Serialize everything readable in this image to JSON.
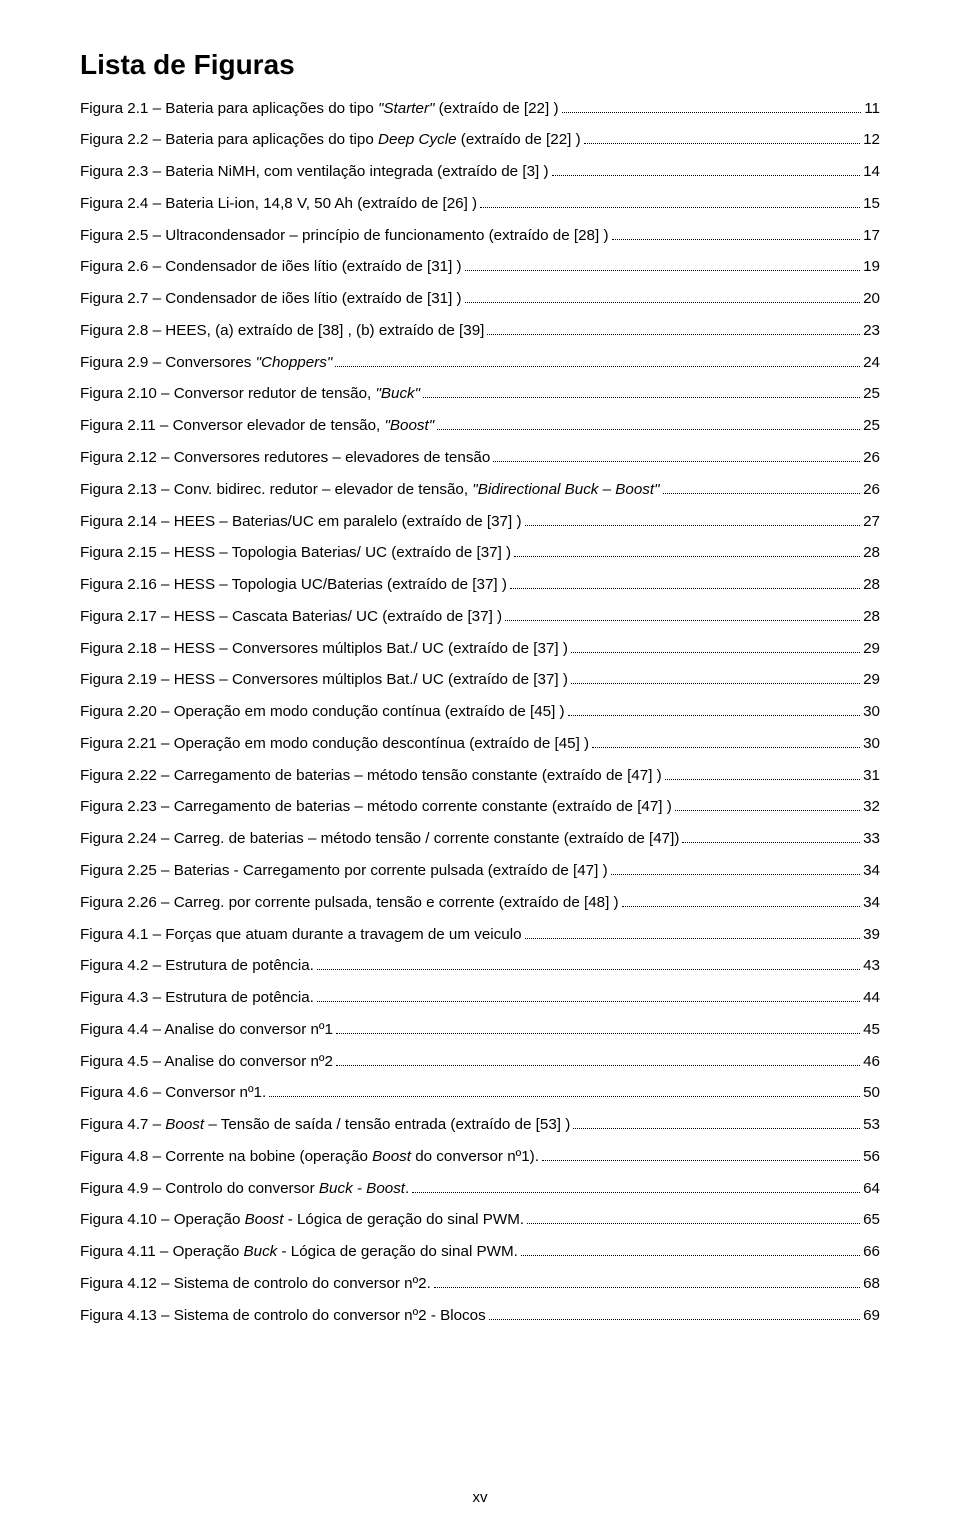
{
  "title": "Lista de Figuras",
  "footer": "xv",
  "entries": [
    {
      "pre": "Figura 2.1 – Bateria para aplicações do tipo ",
      "it": "\"Starter\"",
      "post": " (extraído de [22] )",
      "page": "11"
    },
    {
      "pre": "Figura 2.2 – Bateria para aplicações do tipo ",
      "it": "Deep Cycle",
      "post": " (extraído de [22] )",
      "page": "12"
    },
    {
      "pre": "Figura 2.3 – Bateria NiMH, com ventilação integrada (extraído de [3] )",
      "it": "",
      "post": "",
      "page": "14"
    },
    {
      "pre": "Figura 2.4 – Bateria Li-ion, 14,8 V, 50 Ah (extraído de [26] )",
      "it": "",
      "post": "",
      "page": "15"
    },
    {
      "pre": "Figura 2.5 – Ultracondensador – princípio de funcionamento (extraído de [28] )",
      "it": "",
      "post": "",
      "page": "17"
    },
    {
      "pre": "Figura 2.6 – Condensador de iões lítio (extraído de [31] )",
      "it": "",
      "post": "",
      "page": "19"
    },
    {
      "pre": "Figura 2.7 – Condensador de iões lítio (extraído de [31] )",
      "it": "",
      "post": "",
      "page": "20"
    },
    {
      "pre": "Figura 2.8 – HEES, (a) extraído de [38] , (b) extraído de [39]",
      "it": "",
      "post": "",
      "page": "23"
    },
    {
      "pre": "Figura 2.9 – Conversores ",
      "it": "\"Choppers\"",
      "post": "",
      "page": "24"
    },
    {
      "pre": "Figura 2.10 – Conversor redutor de tensão, ",
      "it": "\"Buck\"",
      "post": "",
      "page": "25"
    },
    {
      "pre": "Figura 2.11 – Conversor elevador de tensão, ",
      "it": "\"Boost\"",
      "post": "",
      "page": "25"
    },
    {
      "pre": "Figura 2.12 – Conversores redutores – elevadores de tensão",
      "it": "",
      "post": "",
      "page": "26"
    },
    {
      "pre": "Figura 2.13 – Conv. bidirec. redutor – elevador de tensão, ",
      "it": "\"Bidirectional Buck – Boost\"",
      "post": "",
      "page": "26"
    },
    {
      "pre": "Figura 2.14 – HEES – Baterias/UC em paralelo (extraído de [37] )",
      "it": "",
      "post": "",
      "page": "27"
    },
    {
      "pre": "Figura 2.15 – HESS – Topologia Baterias/ UC (extraído de [37] )",
      "it": "",
      "post": "",
      "page": "28"
    },
    {
      "pre": "Figura 2.16 – HESS – Topologia UC/Baterias (extraído de [37] )",
      "it": "",
      "post": "",
      "page": "28"
    },
    {
      "pre": "Figura 2.17 – HESS – Cascata Baterias/ UC (extraído de [37] )",
      "it": "",
      "post": "",
      "page": "28"
    },
    {
      "pre": "Figura 2.18 – HESS – Conversores múltiplos Bat./ UC (extraído de [37] )",
      "it": "",
      "post": "",
      "page": "29"
    },
    {
      "pre": "Figura 2.19 – HESS – Conversores múltiplos Bat./ UC (extraído de [37] )",
      "it": "",
      "post": "",
      "page": "29"
    },
    {
      "pre": "Figura 2.20 – Operação em modo condução contínua (extraído de [45] )",
      "it": "",
      "post": "",
      "page": "30"
    },
    {
      "pre": "Figura 2.21 – Operação em modo condução descontínua (extraído de [45] )",
      "it": "",
      "post": "",
      "page": "30"
    },
    {
      "pre": "Figura 2.22 – Carregamento de baterias – método tensão constante (extraído de [47] )",
      "it": "",
      "post": "",
      "page": "31"
    },
    {
      "pre": "Figura 2.23 – Carregamento de baterias – método corrente constante (extraído de [47] )",
      "it": "",
      "post": "",
      "page": "32"
    },
    {
      "pre": "Figura 2.24 – Carreg. de baterias – método tensão / corrente constante (extraído de [47])",
      "it": "",
      "post": "",
      "page": "33"
    },
    {
      "pre": "Figura 2.25 – Baterias - Carregamento por corrente pulsada (extraído de [47] )",
      "it": "",
      "post": "",
      "page": "34"
    },
    {
      "pre": "Figura 2.26 – Carreg. por corrente pulsada, tensão e corrente (extraído de [48] )",
      "it": "",
      "post": "",
      "page": "34"
    },
    {
      "pre": "Figura 4.1 – Forças que atuam durante a travagem de um veiculo",
      "it": "",
      "post": "",
      "page": "39"
    },
    {
      "pre": "Figura 4.2 – Estrutura de potência.",
      "it": "",
      "post": "",
      "page": "43"
    },
    {
      "pre": "Figura 4.3 – Estrutura de potência.",
      "it": "",
      "post": "",
      "page": "44"
    },
    {
      "pre": "Figura 4.4 – Analise do conversor nº1",
      "it": "",
      "post": "",
      "page": "45"
    },
    {
      "pre": "Figura 4.5 – Analise do conversor nº2",
      "it": "",
      "post": "",
      "page": "46"
    },
    {
      "pre": "Figura 4.6 – Conversor nº1.",
      "it": "",
      "post": "",
      "page": "50"
    },
    {
      "pre": "Figura 4.7 – ",
      "it": "Boost",
      "post": " – Tensão de saída / tensão entrada (extraído de [53] )",
      "page": "53"
    },
    {
      "pre": "Figura 4.8 – Corrente na bobine (operação ",
      "it": "Boost",
      "post": " do conversor nº1).",
      "page": "56"
    },
    {
      "pre": "Figura 4.9 – Controlo do conversor ",
      "it": "Buck - Boost",
      "post": ".",
      "page": "64"
    },
    {
      "pre": "Figura 4.10 – Operação ",
      "it": "Boost",
      "post": " - Lógica de geração do sinal PWM.",
      "page": "65"
    },
    {
      "pre": "Figura 4.11 – Operação ",
      "it": "Buck",
      "post": " - Lógica de geração do sinal PWM.",
      "page": "66"
    },
    {
      "pre": "Figura 4.12 – Sistema de controlo do conversor nº2.",
      "it": "",
      "post": "",
      "page": "68"
    },
    {
      "pre": "Figura 4.13 – Sistema de controlo do conversor nº2 - Blocos",
      "it": "",
      "post": "",
      "page": "69"
    }
  ]
}
